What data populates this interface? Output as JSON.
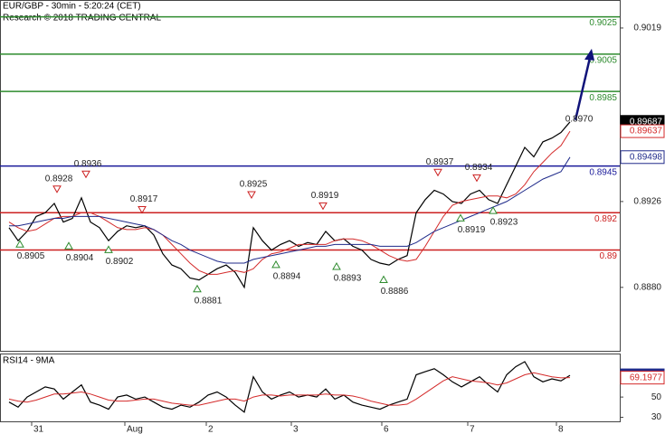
{
  "chart_data": [
    {
      "type": "line",
      "title": "EUR/GBP - 30min - 5:20:24 (CET)",
      "subtitle": "Research © 2018 TRADING CENTRAL",
      "x": [
        1,
        2,
        3,
        4,
        5,
        6,
        7,
        8,
        9,
        10,
        11,
        12,
        13,
        14,
        15,
        16,
        17,
        18,
        19,
        20,
        21,
        22,
        23,
        24,
        25,
        26,
        27,
        28,
        29,
        30,
        31,
        32,
        33,
        34,
        35,
        36,
        37,
        38,
        39,
        40,
        41,
        42,
        43,
        44,
        45,
        46,
        47,
        48,
        49,
        50,
        51,
        52,
        53,
        54,
        55,
        56,
        57,
        58,
        59,
        60,
        61,
        62,
        63
      ],
      "xlim": [
        0,
        68.5
      ],
      "ylim": [
        0.8846,
        0.9034
      ],
      "yticks": [
        {
          "value": 0.888,
          "label": "0.8880"
        },
        0.8926,
        0.9019
      ],
      "series": [
        {
          "color": "#000000",
          "values": [
            0.8912,
            0.8905,
            0.891,
            0.8918,
            0.892,
            0.8925,
            0.8915,
            0.8917,
            0.8928,
            0.8915,
            0.8912,
            0.8905,
            0.891,
            0.8913,
            0.8912,
            0.8913,
            0.8908,
            0.8898,
            0.8892,
            0.889,
            0.8885,
            0.8884,
            0.8887,
            0.889,
            0.8892,
            0.8888,
            0.888,
            0.8912,
            0.8905,
            0.89,
            0.8903,
            0.8905,
            0.8902,
            0.8904,
            0.8903,
            0.891,
            0.8905,
            0.8906,
            0.8902,
            0.89,
            0.8895,
            0.8893,
            0.8892,
            0.8895,
            0.8897,
            0.892,
            0.8927,
            0.8932,
            0.893,
            0.8926,
            0.8925,
            0.893,
            0.8932,
            0.8927,
            0.8925,
            0.8935,
            0.8945,
            0.8955,
            0.895,
            0.8958,
            0.896,
            0.8963,
            0.89687
          ]
        },
        {
          "color": "#d42a2a",
          "values": [
            0.8915,
            0.8912,
            0.891,
            0.8911,
            0.8914,
            0.8917,
            0.8918,
            0.8918,
            0.892,
            0.892,
            0.8918,
            0.8915,
            0.8912,
            0.8911,
            0.8911,
            0.8912,
            0.8911,
            0.8908,
            0.8903,
            0.8898,
            0.8893,
            0.8889,
            0.8887,
            0.8887,
            0.8888,
            0.8889,
            0.8888,
            0.889,
            0.8895,
            0.8898,
            0.8899,
            0.8901,
            0.8903,
            0.8903,
            0.8903,
            0.8903,
            0.8905,
            0.8906,
            0.8906,
            0.8905,
            0.8903,
            0.89,
            0.8897,
            0.8895,
            0.8894,
            0.8895,
            0.8902,
            0.891,
            0.8918,
            0.8924,
            0.8926,
            0.8927,
            0.8928,
            0.8929,
            0.8929,
            0.8928,
            0.893,
            0.8935,
            0.8942,
            0.8947,
            0.8952,
            0.8956,
            0.89637
          ]
        },
        {
          "color": "#1f2a8a",
          "values": [
            0.8913,
            0.8913,
            0.8914,
            0.8915,
            0.8916,
            0.8917,
            0.8917,
            0.8918,
            0.8918,
            0.8918,
            0.8918,
            0.8917,
            0.8916,
            0.8915,
            0.8914,
            0.8913,
            0.8911,
            0.8908,
            0.8905,
            0.8903,
            0.89,
            0.8898,
            0.8896,
            0.8894,
            0.8893,
            0.8893,
            0.8893,
            0.8895,
            0.8896,
            0.8897,
            0.8898,
            0.8899,
            0.89,
            0.8901,
            0.8902,
            0.8902,
            0.8903,
            0.8903,
            0.8903,
            0.8903,
            0.8903,
            0.8902,
            0.8902,
            0.8902,
            0.8902,
            0.8904,
            0.8907,
            0.891,
            0.8912,
            0.8914,
            0.8916,
            0.8918,
            0.892,
            0.8922,
            0.8924,
            0.8926,
            0.8929,
            0.8932,
            0.8935,
            0.8938,
            0.894,
            0.8942,
            0.89498
          ]
        }
      ],
      "levels": [
        {
          "value": 0.9025,
          "color": "#2e8b2e"
        },
        {
          "value": 0.9005,
          "color": "#2e8b2e"
        },
        {
          "value": 0.8985,
          "color": "#2e8b2e"
        },
        {
          "value": 0.8945,
          "color": "#1a1a9a"
        },
        {
          "value": 0.892,
          "color": "#cc2020"
        },
        {
          "value": 0.89,
          "color": "#cc2020"
        }
      ],
      "swings": [
        {
          "x": 6.3,
          "value": 0.8928,
          "marker": "down"
        },
        {
          "x": 9.5,
          "value": 0.8936,
          "marker": "down"
        },
        {
          "x": 15.7,
          "value": 0.8917,
          "marker": "down"
        },
        {
          "x": 27.8,
          "value": 0.8925,
          "marker": "down"
        },
        {
          "x": 35.7,
          "value": 0.8919,
          "marker": "down"
        },
        {
          "x": 48.4,
          "value": 0.8937,
          "marker": "down"
        },
        {
          "x": 52.7,
          "value": 0.8934,
          "marker": "down"
        },
        {
          "x": 2.2,
          "value": 0.8905,
          "marker": "up"
        },
        {
          "x": 7.6,
          "value": 0.8904,
          "marker": "up"
        },
        {
          "x": 12,
          "value": 0.8902,
          "marker": "up"
        },
        {
          "x": 21.8,
          "value": 0.8881,
          "marker": "up"
        },
        {
          "x": 30.5,
          "value": 0.8894,
          "marker": "up"
        },
        {
          "x": 37.2,
          "value": 0.8893,
          "marker": "up"
        },
        {
          "x": 42.4,
          "value": 0.8886,
          "marker": "up"
        },
        {
          "x": 50.9,
          "value": 0.8919,
          "marker": "up"
        },
        {
          "x": 54.5,
          "value": 0.8923,
          "marker": "up"
        }
      ],
      "target": {
        "value": 0.897,
        "label": "0.8970"
      }
    },
    {
      "type": "line",
      "title": "RSI14 - 9MA",
      "x": [
        1,
        2,
        3,
        4,
        5,
        6,
        7,
        8,
        9,
        10,
        11,
        12,
        13,
        14,
        15,
        16,
        17,
        18,
        19,
        20,
        21,
        22,
        23,
        24,
        25,
        26,
        27,
        28,
        29,
        30,
        31,
        32,
        33,
        34,
        35,
        36,
        37,
        38,
        39,
        40,
        41,
        42,
        43,
        44,
        45,
        46,
        47,
        48,
        49,
        50,
        51,
        52,
        53,
        54,
        55,
        56,
        57,
        58,
        59,
        60,
        61,
        62,
        63
      ],
      "xlim": [
        0,
        68.5
      ],
      "xticks": [
        {
          "value": 3.5,
          "label": "31"
        },
        {
          "value": 13.8,
          "label": "Aug"
        },
        {
          "value": 22.8,
          "label": "2"
        },
        {
          "value": 32.2,
          "label": "3"
        },
        {
          "value": 42.2,
          "label": "6"
        },
        {
          "value": 51.7,
          "label": "7"
        },
        {
          "value": 61.5,
          "label": "8"
        }
      ],
      "ylim": [
        26,
        93
      ],
      "yticks": [
        30,
        50
      ],
      "series": [
        {
          "color": "#000000",
          "box": "#1f2a8a",
          "values": [
            45,
            40,
            50,
            55,
            60,
            58,
            48,
            55,
            62,
            45,
            42,
            38,
            50,
            52,
            48,
            50,
            45,
            40,
            38,
            42,
            40,
            45,
            52,
            55,
            50,
            42,
            35,
            70,
            55,
            48,
            52,
            55,
            50,
            52,
            50,
            58,
            48,
            52,
            45,
            42,
            40,
            38,
            42,
            45,
            48,
            72,
            75,
            78,
            72,
            65,
            60,
            65,
            70,
            62,
            55,
            72,
            80,
            85,
            70,
            65,
            68,
            66,
            71.4875
          ]
        },
        {
          "color": "#d42a2a",
          "box": "#d42a2a",
          "values": [
            48,
            46,
            45,
            47,
            50,
            53,
            53,
            54,
            55,
            53,
            50,
            47,
            46,
            46,
            47,
            48,
            48,
            46,
            44,
            43,
            42,
            42,
            44,
            46,
            48,
            48,
            46,
            50,
            52,
            52,
            51,
            52,
            52,
            52,
            52,
            53,
            52,
            52,
            51,
            49,
            46,
            44,
            42,
            42,
            43,
            48,
            54,
            60,
            66,
            70,
            68,
            66,
            65,
            64,
            62,
            64,
            68,
            72,
            74,
            72,
            70,
            69,
            69.1977
          ]
        }
      ]
    }
  ]
}
